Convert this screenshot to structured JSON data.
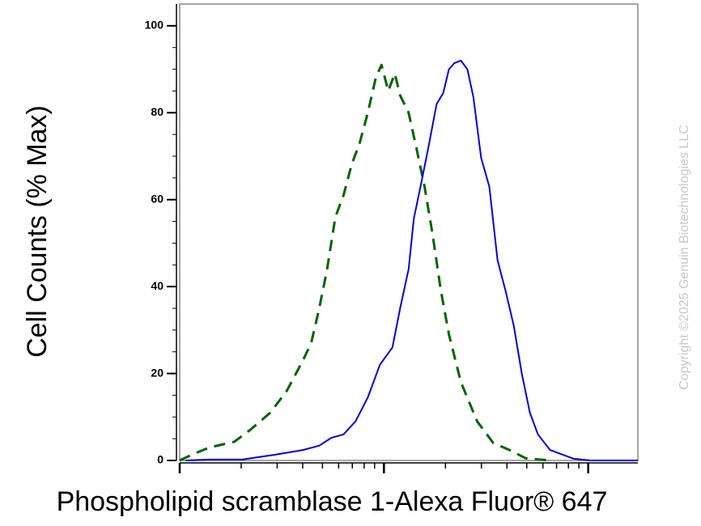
{
  "chart_data": {
    "type": "line",
    "y_label": "Cell Counts (% Max)",
    "x_label": "Phospholipid scramblase 1-Alexa Fluor® 647",
    "watermark": "Copyright ©2025 Genuin Biotechnologies LLC",
    "xscale": "log",
    "xlim": [
      1,
      175
    ],
    "xticks": [
      1,
      10,
      100
    ],
    "xtick_labels": false,
    "ylim": [
      0,
      105
    ],
    "yticks": [
      0,
      20,
      40,
      60,
      80,
      100
    ],
    "series": [
      {
        "color": "#006400",
        "dashed": true,
        "x": [
          1,
          1.17,
          1.4,
          1.85,
          2.21,
          2.78,
          3.34,
          4.01,
          4.4,
          4.82,
          5.27,
          5.78,
          6.34,
          6.94,
          7.6,
          8.34,
          9.12,
          9.73,
          10.5,
          11.3,
          12.0,
          13.2,
          14.4,
          15.8,
          17.3,
          19.0,
          20.8,
          23.8,
          28.6,
          34.3,
          41.2,
          49.4,
          65.1
        ],
        "values": [
          0,
          1.5,
          3,
          4.3,
          7,
          11,
          16,
          23,
          27,
          35,
          44,
          56,
          61,
          68,
          73,
          80,
          88,
          91,
          85,
          89,
          84,
          80,
          72,
          63,
          52,
          39,
          29,
          18,
          9,
          4,
          2.4,
          0.5,
          0
        ]
      },
      {
        "color": "#0000e0",
        "dashed": false,
        "x": [
          1.07,
          1.4,
          2.02,
          2.91,
          4.01,
          4.82,
          5.52,
          6.34,
          7.26,
          8.34,
          9.55,
          11.0,
          12.0,
          13.2,
          14.0,
          15.1,
          16.5,
          18.1,
          19.5,
          20.8,
          22.1,
          23.8,
          25.6,
          27.4,
          29.9,
          32.8,
          36.0,
          39.4,
          43.2,
          47.3,
          51.8,
          56.7,
          65.1,
          84.9,
          103,
          175
        ],
        "values": [
          0,
          0.2,
          0.2,
          1.3,
          2.4,
          3.4,
          5.2,
          6,
          9,
          14.5,
          22,
          26,
          35,
          44,
          55.6,
          63,
          72,
          82,
          84.5,
          90,
          91.4,
          92,
          90,
          83.6,
          69.6,
          63,
          46,
          39,
          31,
          20,
          11,
          6,
          2.4,
          0.4,
          0,
          0
        ]
      }
    ]
  }
}
